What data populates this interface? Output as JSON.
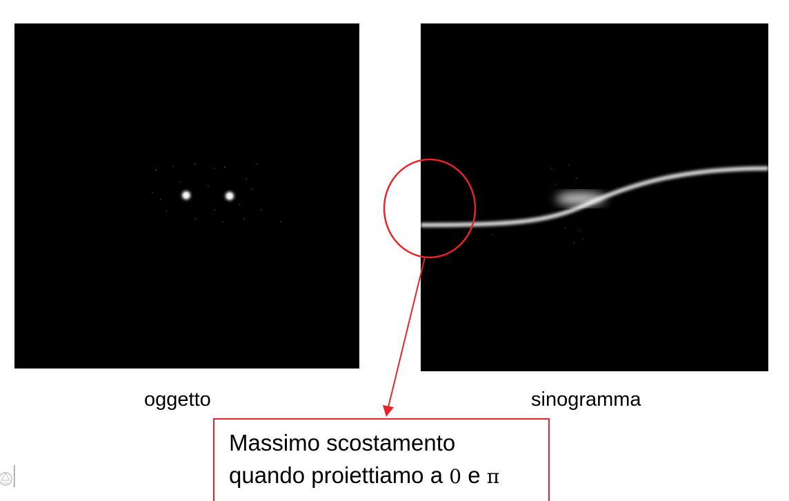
{
  "figure": {
    "left_panel_caption": "oggetto",
    "right_panel_caption": "sinogramma",
    "annotation": {
      "line1": "Massimo scostamento",
      "line2_prefix": "quando proiettiamo a",
      "angle_zero": "0",
      "conjunction": "e",
      "angle_pi": "π"
    }
  },
  "colors": {
    "annotation_red": "#e8232a",
    "panel_background": "#000000",
    "signal": "#ffffff"
  },
  "icons": {
    "corner_logo": "university-logo-icon"
  }
}
